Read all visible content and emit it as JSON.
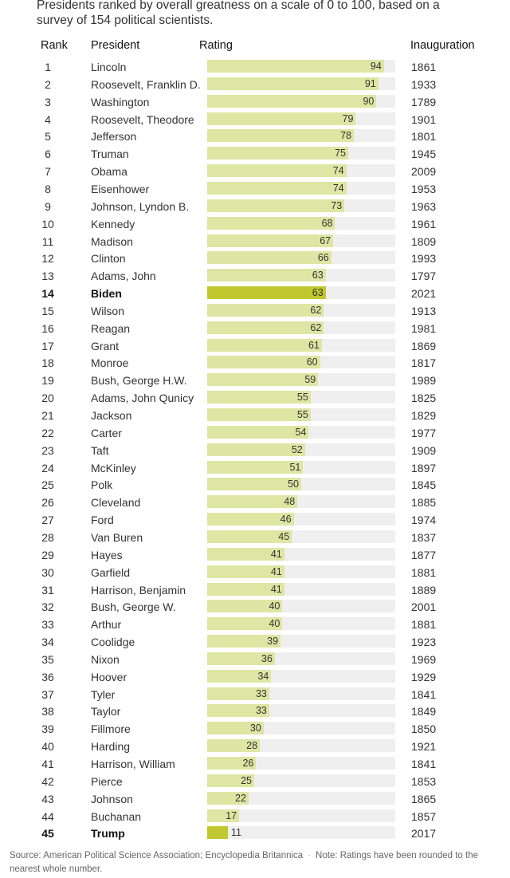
{
  "subtitle": "Presidents ranked by overall greatness on a scale of 0 to 100, based on a survey of 154 political scientists.",
  "headers": {
    "rank": "Rank",
    "president": "President",
    "rating": "Rating",
    "inauguration": "Inauguration"
  },
  "footer": {
    "source": "Source: American Political Science Association; Encyclopedia Britannica",
    "separator": "·",
    "note": "Note: Ratings have been rounded to the nearest whole number."
  },
  "colors": {
    "bar": "#dde6a2",
    "highlight_bar": "#c1c82f",
    "track": "#efefef"
  },
  "chart_data": {
    "type": "table",
    "scale": [
      0,
      100
    ],
    "highlighted": [
      "Biden",
      "Trump"
    ],
    "rows": [
      {
        "rank": "1",
        "president": "Lincoln",
        "rating": 94,
        "inauguration": "1861"
      },
      {
        "rank": "2",
        "president": "Roosevelt, Franklin D.",
        "rating": 91,
        "inauguration": "1933"
      },
      {
        "rank": "3",
        "president": "Washington",
        "rating": 90,
        "inauguration": "1789"
      },
      {
        "rank": "4",
        "president": "Roosevelt, Theodore",
        "rating": 79,
        "inauguration": "1901"
      },
      {
        "rank": "5",
        "president": "Jefferson",
        "rating": 78,
        "inauguration": "1801"
      },
      {
        "rank": "6",
        "president": "Truman",
        "rating": 75,
        "inauguration": "1945"
      },
      {
        "rank": "7",
        "president": "Obama",
        "rating": 74,
        "inauguration": "2009"
      },
      {
        "rank": "8",
        "president": "Eisenhower",
        "rating": 74,
        "inauguration": "1953"
      },
      {
        "rank": "9",
        "president": "Johnson, Lyndon B.",
        "rating": 73,
        "inauguration": "1963"
      },
      {
        "rank": "10",
        "president": "Kennedy",
        "rating": 68,
        "inauguration": "1961"
      },
      {
        "rank": "11",
        "president": "Madison",
        "rating": 67,
        "inauguration": "1809"
      },
      {
        "rank": "12",
        "president": "Clinton",
        "rating": 66,
        "inauguration": "1993"
      },
      {
        "rank": "13",
        "president": "Adams, John",
        "rating": 63,
        "inauguration": "1797"
      },
      {
        "rank": "14",
        "president": "Biden",
        "rating": 63,
        "inauguration": "2021"
      },
      {
        "rank": "15",
        "president": "Wilson",
        "rating": 62,
        "inauguration": "1913"
      },
      {
        "rank": "16",
        "president": "Reagan",
        "rating": 62,
        "inauguration": "1981"
      },
      {
        "rank": "17",
        "president": "Grant",
        "rating": 61,
        "inauguration": "1869"
      },
      {
        "rank": "18",
        "president": "Monroe",
        "rating": 60,
        "inauguration": "1817"
      },
      {
        "rank": "19",
        "president": "Bush, George H.W.",
        "rating": 59,
        "inauguration": "1989"
      },
      {
        "rank": "20",
        "president": "Adams, John Qunicy",
        "rating": 55,
        "inauguration": "1825"
      },
      {
        "rank": "21",
        "president": "Jackson",
        "rating": 55,
        "inauguration": "1829"
      },
      {
        "rank": "22",
        "president": "Carter",
        "rating": 54,
        "inauguration": "1977"
      },
      {
        "rank": "23",
        "president": "Taft",
        "rating": 52,
        "inauguration": "1909"
      },
      {
        "rank": "24",
        "president": "McKinley",
        "rating": 51,
        "inauguration": "1897"
      },
      {
        "rank": "25",
        "president": "Polk",
        "rating": 50,
        "inauguration": "1845"
      },
      {
        "rank": "26",
        "president": "Cleveland",
        "rating": 48,
        "inauguration": "1885"
      },
      {
        "rank": "27",
        "president": "Ford",
        "rating": 46,
        "inauguration": "1974"
      },
      {
        "rank": "28",
        "president": "Van Buren",
        "rating": 45,
        "inauguration": "1837"
      },
      {
        "rank": "29",
        "president": "Hayes",
        "rating": 41,
        "inauguration": "1877"
      },
      {
        "rank": "30",
        "president": "Garfield",
        "rating": 41,
        "inauguration": "1881"
      },
      {
        "rank": "31",
        "president": "Harrison, Benjamin",
        "rating": 41,
        "inauguration": "1889"
      },
      {
        "rank": "32",
        "president": "Bush, George W.",
        "rating": 40,
        "inauguration": "2001"
      },
      {
        "rank": "33",
        "president": "Arthur",
        "rating": 40,
        "inauguration": "1881"
      },
      {
        "rank": "34",
        "president": "Coolidge",
        "rating": 39,
        "inauguration": "1923"
      },
      {
        "rank": "35",
        "president": "Nixon",
        "rating": 36,
        "inauguration": "1969"
      },
      {
        "rank": "36",
        "president": "Hoover",
        "rating": 34,
        "inauguration": "1929"
      },
      {
        "rank": "37",
        "president": "Tyler",
        "rating": 33,
        "inauguration": "1841"
      },
      {
        "rank": "38",
        "president": "Taylor",
        "rating": 33,
        "inauguration": "1849"
      },
      {
        "rank": "39",
        "president": "Fillmore",
        "rating": 30,
        "inauguration": "1850"
      },
      {
        "rank": "40",
        "president": "Harding",
        "rating": 28,
        "inauguration": "1921"
      },
      {
        "rank": "41",
        "president": "Harrison, William",
        "rating": 26,
        "inauguration": "1841"
      },
      {
        "rank": "42",
        "president": "Pierce",
        "rating": 25,
        "inauguration": "1853"
      },
      {
        "rank": "43",
        "president": "Johnson",
        "rating": 22,
        "inauguration": "1865"
      },
      {
        "rank": "44",
        "president": "Buchanan",
        "rating": 17,
        "inauguration": "1857"
      },
      {
        "rank": "45",
        "president": "Trump",
        "rating": 11,
        "inauguration": "2017"
      }
    ]
  }
}
